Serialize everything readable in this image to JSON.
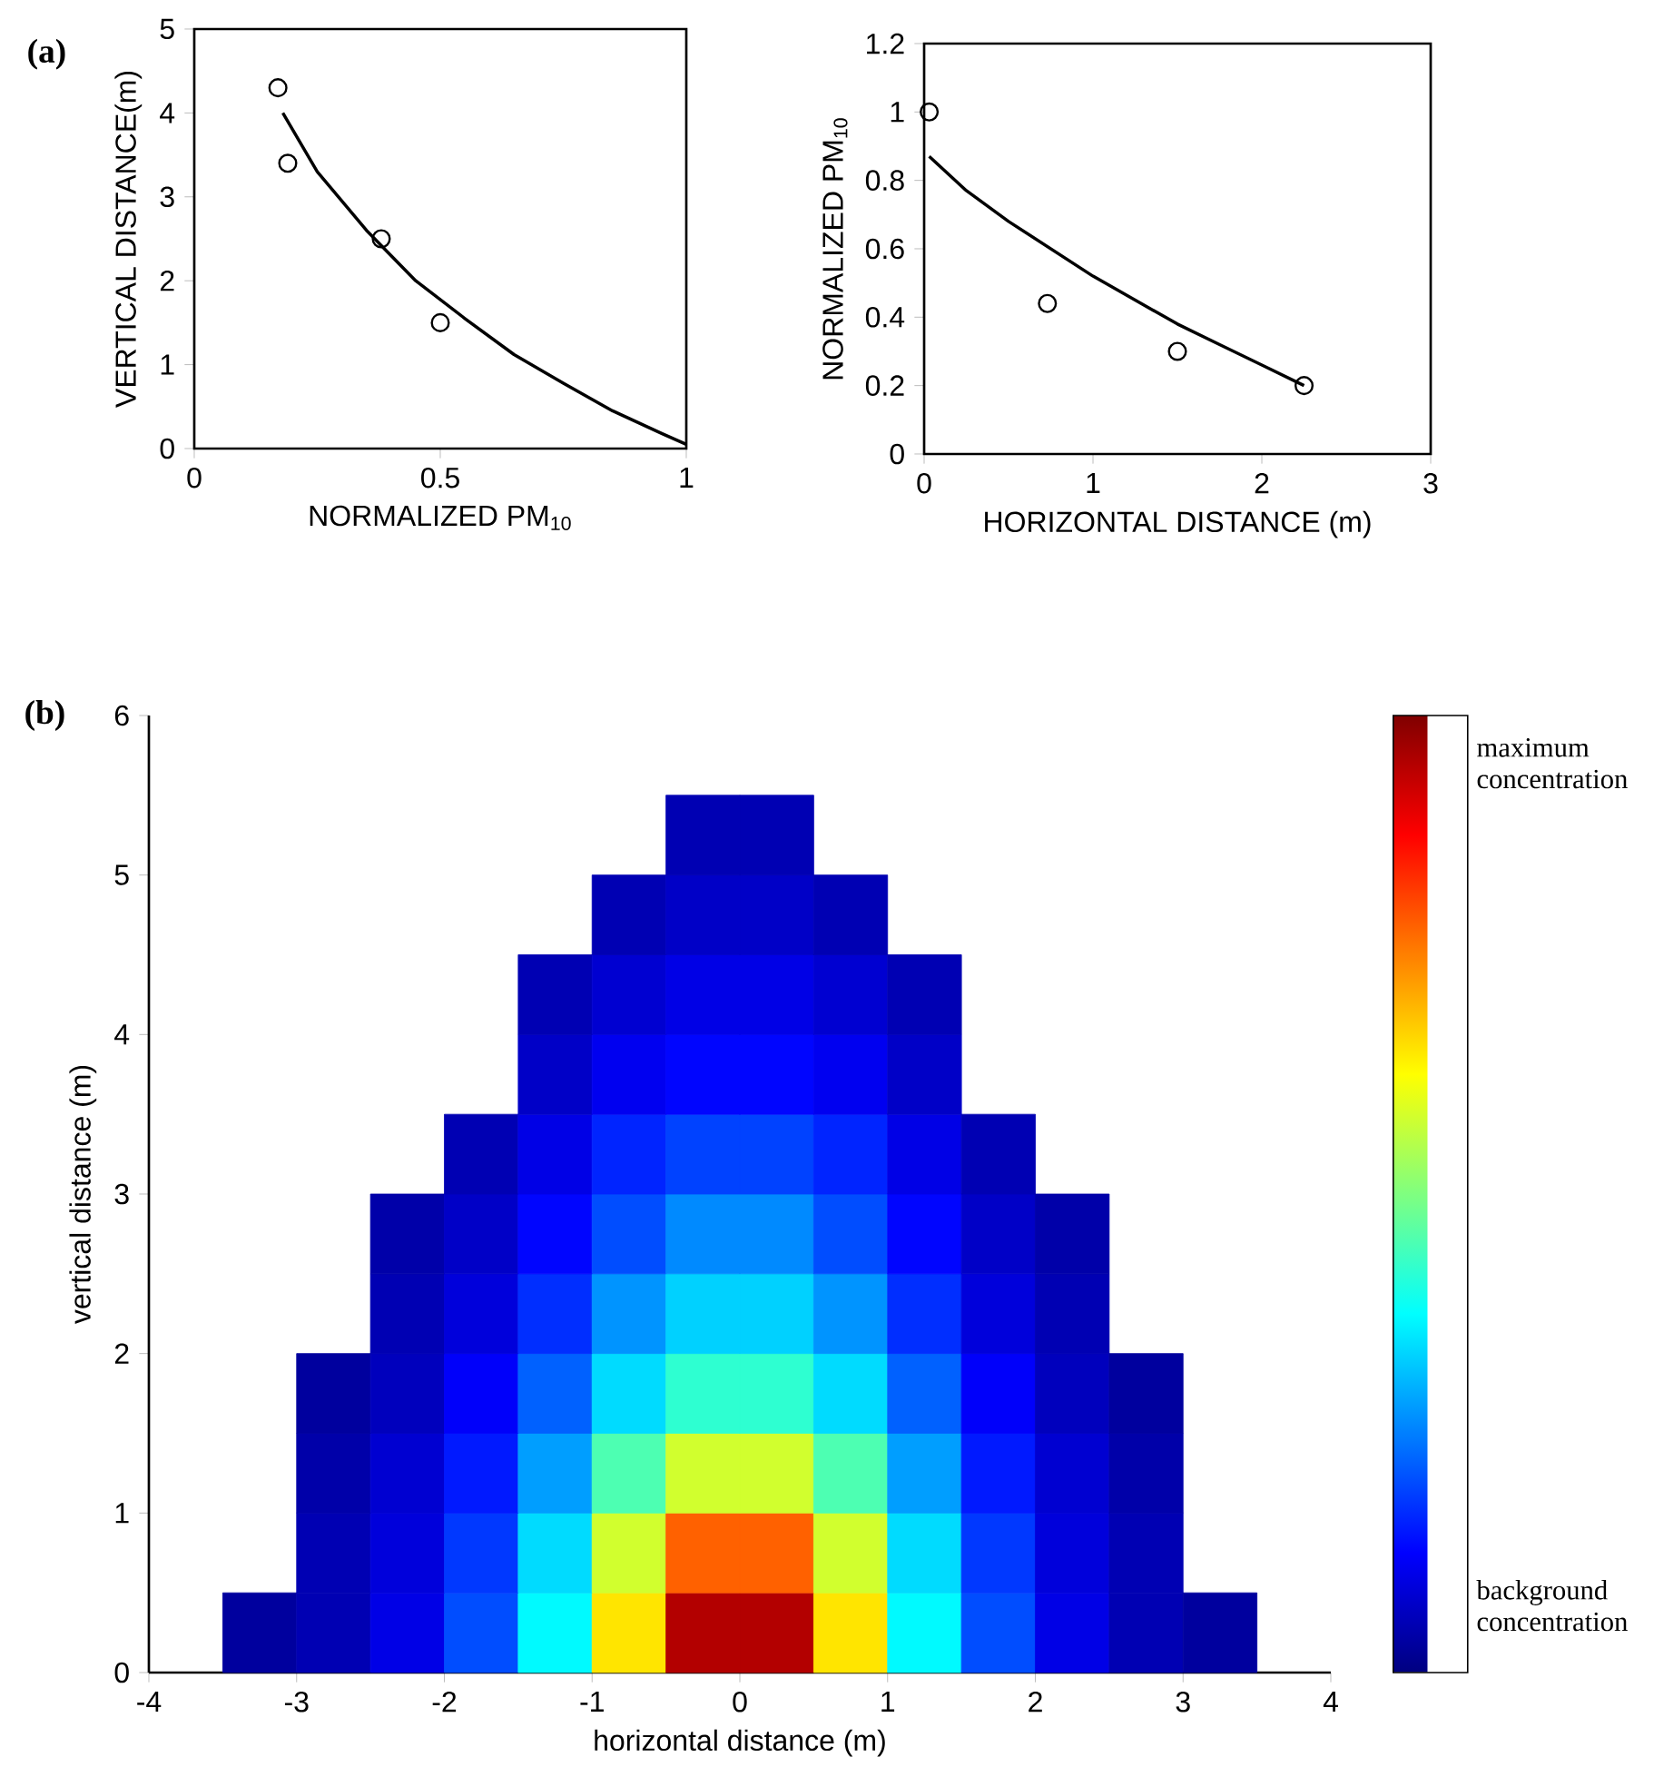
{
  "chart_data": [
    {
      "type": "scatter",
      "xlabel": "NORMALIZED PM$_{10}$",
      "ylabel": "VERTICAL DISTANCE(m)",
      "annotations": [
        "(a)"
      ],
      "xlim": [
        0,
        1
      ],
      "xticks": [
        0,
        0.5,
        1
      ],
      "ylim": [
        0,
        5
      ],
      "yticks": [
        0,
        1,
        2,
        3,
        4,
        5
      ],
      "series": [
        {
          "type": "scatter",
          "marker": "circle",
          "color": "#000000",
          "x": [
            0.17,
            0.19,
            0.38,
            0.5
          ],
          "values": [
            4.3,
            3.4,
            2.5,
            1.5
          ]
        },
        {
          "type": "line",
          "color": "#000000",
          "x": [
            0.18,
            0.25,
            0.35,
            0.45,
            0.55,
            0.65,
            0.75,
            0.85,
            0.95,
            1.0
          ],
          "values": [
            4.0,
            3.3,
            2.6,
            2.0,
            1.55,
            1.12,
            0.78,
            0.45,
            0.18,
            0.05
          ]
        }
      ]
    },
    {
      "type": "scatter",
      "xlabel": "HORIZONTAL DISTANCE (m)",
      "ylabel": "NORMALIZED PM$_{10}$",
      "xlim": [
        0,
        3
      ],
      "xticks": [
        0,
        1,
        2,
        3
      ],
      "ylim": [
        0,
        1.2
      ],
      "yticks": [
        0,
        0.2,
        0.4,
        0.6,
        0.8,
        1,
        1.2
      ],
      "series": [
        {
          "type": "scatter",
          "marker": "circle",
          "color": "#000000",
          "x": [
            0.03,
            0.73,
            1.5,
            2.25
          ],
          "values": [
            1.0,
            0.44,
            0.3,
            0.2
          ]
        },
        {
          "type": "line",
          "color": "#000000",
          "x": [
            0.03,
            0.25,
            0.5,
            0.75,
            1.0,
            1.25,
            1.5,
            1.75,
            2.0,
            2.25
          ],
          "values": [
            0.87,
            0.77,
            0.68,
            0.6,
            0.52,
            0.45,
            0.38,
            0.32,
            0.26,
            0.2
          ]
        }
      ]
    },
    {
      "type": "scatter",
      "xlabel": "horizontal distance (m)",
      "ylabel": "vertical distance (m)",
      "annotations": [
        "(b)"
      ],
      "xlim": [
        -4,
        4
      ],
      "xticks": [
        -4,
        -3,
        -2,
        -1,
        0,
        1,
        2,
        3,
        4
      ],
      "ylim": [
        0,
        6
      ],
      "yticks": [
        0,
        1,
        2,
        3,
        4,
        5,
        6
      ],
      "clim": [
        0,
        1
      ],
      "cticks": [
        {
          "value": 0.95,
          "label": "maximum concentration"
        },
        {
          "value": 0.07,
          "label": "background concentration"
        }
      ],
      "series": [
        {
          "marker": "square",
          "x": [
            -3.25,
            -2.75,
            -2.25,
            -1.75,
            -1.25,
            -0.75,
            -0.25,
            0.25,
            0.75,
            1.25,
            1.75,
            2.25,
            2.75,
            3.25,
            -2.75,
            -2.25,
            -1.75,
            -1.25,
            -0.75,
            -0.25,
            0.25,
            0.75,
            1.25,
            1.75,
            2.25,
            2.75,
            -2.75,
            -2.25,
            -1.75,
            -1.25,
            -0.75,
            -0.25,
            0.25,
            0.75,
            1.25,
            1.75,
            2.25,
            2.75,
            -2.75,
            -2.25,
            -1.75,
            -1.25,
            -0.75,
            -0.25,
            0.25,
            0.75,
            1.25,
            1.75,
            2.25,
            2.75,
            -2.25,
            -1.75,
            -1.25,
            -0.75,
            -0.25,
            0.25,
            0.75,
            1.25,
            1.75,
            2.25,
            -2.25,
            -1.75,
            -1.25,
            -0.75,
            -0.25,
            0.25,
            0.75,
            1.25,
            1.75,
            2.25,
            -1.75,
            -1.25,
            -0.75,
            -0.25,
            0.25,
            0.75,
            1.25,
            1.75,
            -1.25,
            -0.75,
            -0.25,
            0.25,
            0.75,
            1.25,
            -1.25,
            -0.75,
            -0.25,
            0.25,
            0.75,
            1.25,
            -0.75,
            -0.25,
            0.25,
            0.75,
            -0.25,
            0.25
          ],
          "values": [
            0.25,
            0.25,
            0.25,
            0.25,
            0.25,
            0.25,
            0.25,
            0.25,
            0.25,
            0.25,
            0.25,
            0.25,
            0.25,
            0.25,
            0.75,
            0.75,
            0.75,
            0.75,
            0.75,
            0.75,
            0.75,
            0.75,
            0.75,
            0.75,
            0.75,
            0.75,
            1.25,
            1.25,
            1.25,
            1.25,
            1.25,
            1.25,
            1.25,
            1.25,
            1.25,
            1.25,
            1.25,
            1.25,
            1.75,
            1.75,
            1.75,
            1.75,
            1.75,
            1.75,
            1.75,
            1.75,
            1.75,
            1.75,
            1.75,
            1.75,
            2.25,
            2.25,
            2.25,
            2.25,
            2.25,
            2.25,
            2.25,
            2.25,
            2.25,
            2.25,
            2.75,
            2.75,
            2.75,
            2.75,
            2.75,
            2.75,
            2.75,
            2.75,
            2.75,
            2.75,
            3.25,
            3.25,
            3.25,
            3.25,
            3.25,
            3.25,
            3.25,
            3.25,
            3.75,
            3.75,
            3.75,
            3.75,
            3.75,
            3.75,
            4.25,
            4.25,
            4.25,
            4.25,
            4.25,
            4.25,
            4.75,
            4.75,
            4.75,
            4.75,
            5.25,
            5.25
          ],
          "cvalues": [
            0.03,
            0.05,
            0.1,
            0.2,
            0.37,
            0.65,
            0.95,
            0.95,
            0.65,
            0.37,
            0.2,
            0.1,
            0.05,
            0.03,
            0.05,
            0.09,
            0.18,
            0.34,
            0.58,
            0.78,
            0.78,
            0.58,
            0.34,
            0.18,
            0.09,
            0.05,
            0.04,
            0.08,
            0.15,
            0.28,
            0.45,
            0.58,
            0.58,
            0.45,
            0.28,
            0.15,
            0.08,
            0.04,
            0.03,
            0.06,
            0.12,
            0.22,
            0.34,
            0.42,
            0.42,
            0.34,
            0.22,
            0.12,
            0.06,
            0.03,
            0.05,
            0.09,
            0.17,
            0.27,
            0.33,
            0.33,
            0.27,
            0.17,
            0.09,
            0.05,
            0.04,
            0.07,
            0.13,
            0.2,
            0.26,
            0.26,
            0.2,
            0.13,
            0.07,
            0.04,
            0.05,
            0.1,
            0.16,
            0.19,
            0.19,
            0.16,
            0.1,
            0.05,
            0.07,
            0.11,
            0.13,
            0.13,
            0.11,
            0.07,
            0.05,
            0.08,
            0.1,
            0.1,
            0.08,
            0.05,
            0.05,
            0.07,
            0.07,
            0.05,
            0.05,
            0.05
          ]
        }
      ]
    }
  ]
}
